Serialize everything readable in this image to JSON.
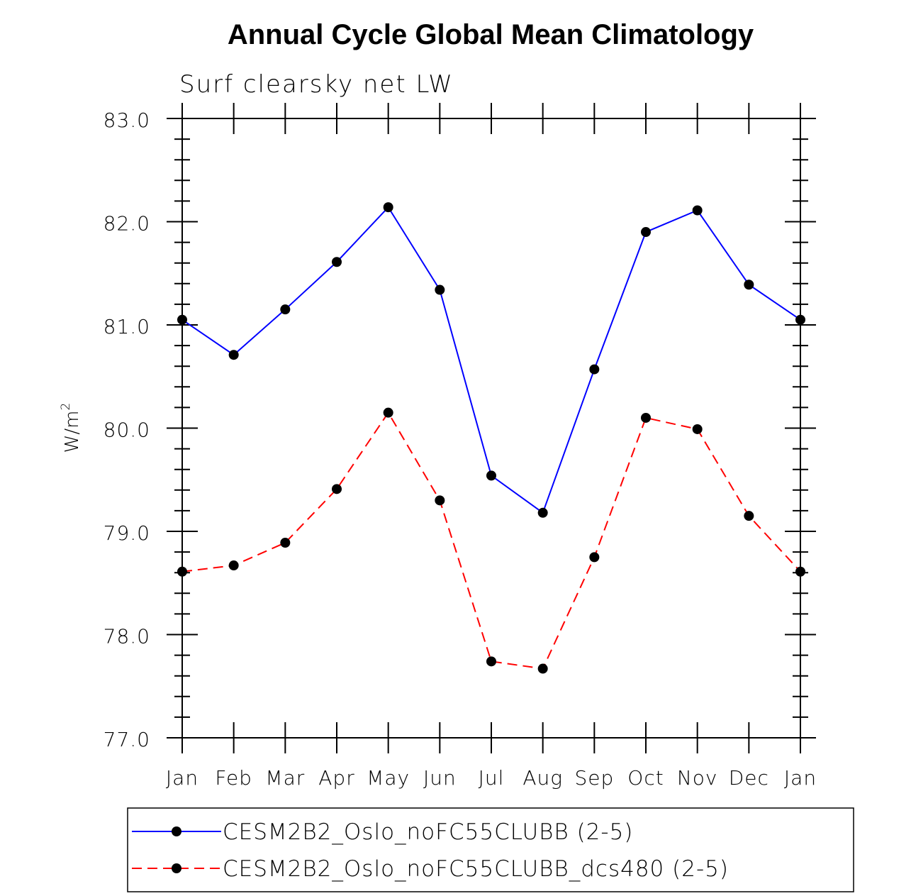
{
  "chart_data": {
    "type": "line",
    "title": "Annual Cycle Global Mean Climatology",
    "subtitle": "Surf clearsky net LW",
    "ylabel_main": "W/m",
    "ylabel_sup": "2",
    "categories": [
      "Jan",
      "Feb",
      "Mar",
      "Apr",
      "May",
      "Jun",
      "Jul",
      "Aug",
      "Sep",
      "Oct",
      "Nov",
      "Dec",
      "Jan"
    ],
    "ylim": [
      77.0,
      83.0
    ],
    "yticks": [
      "77.0",
      "78.0",
      "79.0",
      "80.0",
      "81.0",
      "82.0",
      "83.0"
    ],
    "series": [
      {
        "name": "CESM2B2_Oslo_noFC55CLUBB (2-5)",
        "color": "#0000ff",
        "style": "solid",
        "values": [
          81.05,
          80.71,
          81.15,
          81.61,
          82.14,
          81.34,
          79.54,
          79.18,
          80.57,
          81.9,
          82.11,
          81.39,
          81.05
        ]
      },
      {
        "name": "CESM2B2_Oslo_noFC55CLUBB_dcs480 (2-5)",
        "color": "#ff0000",
        "style": "dashed",
        "values": [
          78.61,
          78.67,
          78.89,
          79.41,
          80.15,
          79.3,
          77.74,
          77.67,
          78.75,
          80.1,
          79.99,
          79.15,
          78.61
        ]
      }
    ],
    "legend_position": "bottom"
  }
}
